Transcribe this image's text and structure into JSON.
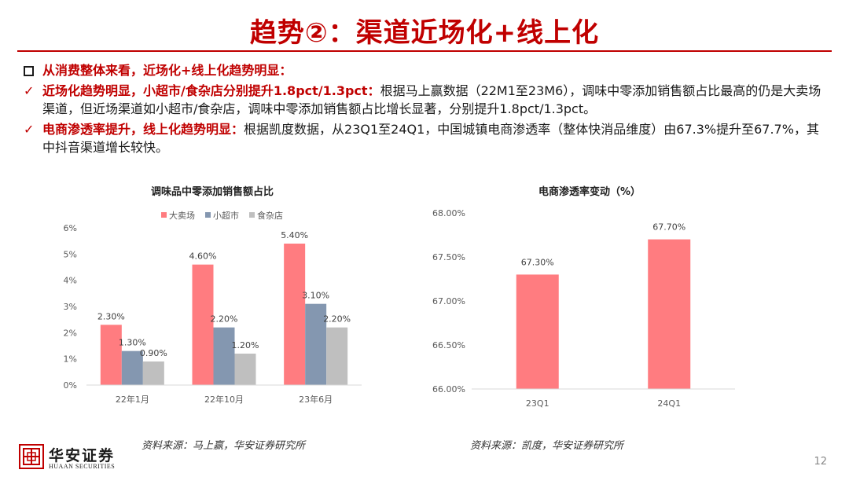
{
  "header": {
    "title": "趋势②：渠道近场化+线上化"
  },
  "bullets": [
    {
      "marker": "square",
      "bold": "从消费整体来看，近场化+线上化趋势明显：",
      "text": ""
    },
    {
      "marker": "check",
      "bold": "近场化趋势明显，小超市/食杂店分别提升1.8pct/1.3pct：",
      "text": "根据马上赢数据（22M1至23M6），调味中零添加销售额占比最高的仍是大卖场渠道，但近场渠道如小超市/食杂店，调味中零添加销售额占比增长显著，分别提升1.8pct/1.3pct。"
    },
    {
      "marker": "check",
      "bold": "电商渗透率提升，线上化趋势明显：",
      "text": "根据凯度数据，从23Q1至24Q1，中国城镇电商渗透率（整体快消品维度）由67.3%提升至67.7%，其中抖音渠道增长较快。"
    }
  ],
  "check_glyph": "✓",
  "chart_data": [
    {
      "type": "bar",
      "title": "调味品中零添加销售额占比",
      "categories": [
        "22年1月",
        "22年10月",
        "23年6月"
      ],
      "series": [
        {
          "name": "大卖场",
          "color": "#ff7c80",
          "values": [
            2.3,
            4.6,
            5.4
          ],
          "labels": [
            "2.30%",
            "4.60%",
            "5.40%"
          ]
        },
        {
          "name": "小超市",
          "color": "#8497b0",
          "values": [
            1.3,
            2.2,
            3.1
          ],
          "labels": [
            "1.30%",
            "2.20%",
            "3.10%"
          ]
        },
        {
          "name": "食杂店",
          "color": "#bfbfbf",
          "values": [
            0.9,
            1.2,
            2.2
          ],
          "labels": [
            "0.90%",
            "1.20%",
            "2.20%"
          ]
        }
      ],
      "ylim": [
        0,
        6
      ],
      "yticks": [
        0,
        1,
        2,
        3,
        4,
        5,
        6
      ],
      "ytick_labels": [
        "0%",
        "1%",
        "2%",
        "3%",
        "4%",
        "5%",
        "6%"
      ],
      "legend_position": "top",
      "grid": false
    },
    {
      "type": "bar",
      "title": "电商渗透率变动（%）",
      "categories": [
        "23Q1",
        "24Q1"
      ],
      "series": [
        {
          "name": "电商渗透率",
          "color": "#ff7c80",
          "values": [
            67.3,
            67.7
          ],
          "labels": [
            "67.30%",
            "67.70%"
          ]
        }
      ],
      "ylim": [
        66.0,
        68.0
      ],
      "yticks": [
        66.0,
        66.5,
        67.0,
        67.5,
        68.0
      ],
      "ytick_labels": [
        "66.00%",
        "66.50%",
        "67.00%",
        "67.50%",
        "68.00%"
      ],
      "grid": false
    }
  ],
  "sources": [
    "资料来源：马上赢，华安证券研究所",
    "资料来源：凯度，华安证券研究所"
  ],
  "logo": {
    "cn": "华安证券",
    "en": "HUAAN SECURITIES"
  },
  "page_number": "12"
}
